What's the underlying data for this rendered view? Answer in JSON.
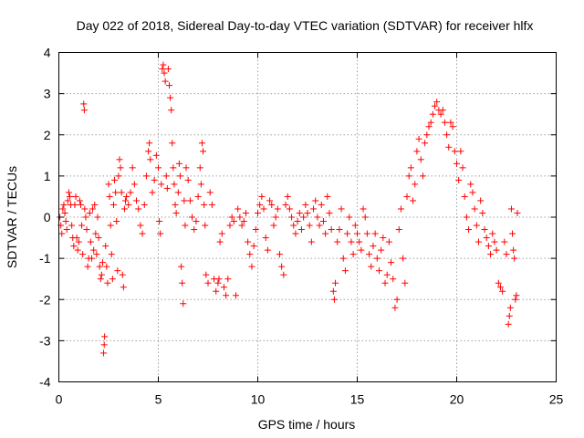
{
  "chart_data": {
    "type": "scatter",
    "title": "Day 022 of 2018, Sidereal Day-to-day VTEC variation (SDTVAR) for receiver hlfx",
    "xlabel": "GPS time / hours",
    "ylabel": "SDTVAR / TECUs",
    "xlim": [
      0,
      25
    ],
    "ylim": [
      -4,
      4
    ],
    "xticks": [
      "0",
      "5",
      "10",
      "15",
      "20",
      "25"
    ],
    "yticks": [
      "-4",
      "-3",
      "-2",
      "-1",
      "0",
      "1",
      "2",
      "3",
      "4"
    ],
    "grid": true,
    "marker": "plus",
    "color": "#ff0000",
    "series": [
      {
        "name": "SDTVAR",
        "points": [
          [
            0.05,
            0.0
          ],
          [
            0.1,
            -0.2
          ],
          [
            0.15,
            -0.4
          ],
          [
            0.2,
            0.2
          ],
          [
            0.25,
            0.3
          ],
          [
            0.3,
            0.1
          ],
          [
            0.35,
            -0.1
          ],
          [
            0.4,
            -0.3
          ],
          [
            0.45,
            0.4
          ],
          [
            0.5,
            0.6
          ],
          [
            0.55,
            0.5
          ],
          [
            0.6,
            0.3
          ],
          [
            0.65,
            -0.2
          ],
          [
            0.7,
            -0.5
          ],
          [
            0.75,
            -0.7
          ],
          [
            0.8,
            0.3
          ],
          [
            0.85,
            0.5
          ],
          [
            0.9,
            -0.5
          ],
          [
            0.95,
            -0.8
          ],
          [
            1.0,
            -0.6
          ],
          [
            1.05,
            0.4
          ],
          [
            1.1,
            0.3
          ],
          [
            1.15,
            -0.2
          ],
          [
            1.2,
            -0.9
          ],
          [
            1.25,
            2.75
          ],
          [
            1.28,
            2.6
          ],
          [
            1.3,
            0.2
          ],
          [
            1.35,
            0.0
          ],
          [
            1.4,
            -0.3
          ],
          [
            1.45,
            -1.2
          ],
          [
            1.5,
            -1.0
          ],
          [
            1.55,
            0.1
          ],
          [
            1.6,
            -0.6
          ],
          [
            1.65,
            -1.0
          ],
          [
            1.7,
            0.2
          ],
          [
            1.75,
            -0.8
          ],
          [
            1.8,
            0.3
          ],
          [
            1.85,
            -0.4
          ],
          [
            1.9,
            -0.9
          ],
          [
            1.95,
            0.0
          ],
          [
            2.0,
            -0.5
          ],
          [
            2.05,
            -1.2
          ],
          [
            2.1,
            -1.5
          ],
          [
            2.15,
            -1.4
          ],
          [
            2.2,
            -1.1
          ],
          [
            2.25,
            -3.3
          ],
          [
            2.28,
            -3.1
          ],
          [
            2.3,
            -2.9
          ],
          [
            2.35,
            -0.7
          ],
          [
            2.4,
            -1.2
          ],
          [
            2.45,
            -1.6
          ],
          [
            2.5,
            0.8
          ],
          [
            2.55,
            0.5
          ],
          [
            2.6,
            -0.2
          ],
          [
            2.65,
            -0.9
          ],
          [
            2.7,
            -1.5
          ],
          [
            2.75,
            0.3
          ],
          [
            2.8,
            0.9
          ],
          [
            2.85,
            0.6
          ],
          [
            2.9,
            -0.1
          ],
          [
            2.95,
            -1.3
          ],
          [
            3.0,
            1.0
          ],
          [
            3.05,
            1.4
          ],
          [
            3.1,
            1.2
          ],
          [
            3.15,
            0.6
          ],
          [
            3.2,
            -1.4
          ],
          [
            3.25,
            -1.7
          ],
          [
            3.3,
            0.2
          ],
          [
            3.35,
            0.4
          ],
          [
            3.4,
            0.5
          ],
          [
            3.5,
            0.3
          ],
          [
            3.6,
            0.6
          ],
          [
            3.7,
            1.2
          ],
          [
            3.8,
            0.8
          ],
          [
            3.9,
            0.4
          ],
          [
            4.0,
            0.2
          ],
          [
            4.1,
            -0.2
          ],
          [
            4.2,
            -0.4
          ],
          [
            4.3,
            0.3
          ],
          [
            4.4,
            1.0
          ],
          [
            4.5,
            1.6
          ],
          [
            4.55,
            1.8
          ],
          [
            4.6,
            1.4
          ],
          [
            4.7,
            0.6
          ],
          [
            4.8,
            0.9
          ],
          [
            4.9,
            1.5
          ],
          [
            5.0,
            1.2
          ],
          [
            5.05,
            -0.1
          ],
          [
            5.1,
            -0.4
          ],
          [
            5.15,
            0.8
          ],
          [
            5.2,
            3.6
          ],
          [
            5.25,
            3.7
          ],
          [
            5.3,
            3.5
          ],
          [
            5.35,
            3.3
          ],
          [
            5.4,
            1.0
          ],
          [
            5.45,
            0.7
          ],
          [
            5.5,
            3.6
          ],
          [
            5.55,
            3.2
          ],
          [
            5.6,
            2.9
          ],
          [
            5.65,
            2.6
          ],
          [
            5.7,
            1.8
          ],
          [
            5.75,
            1.2
          ],
          [
            5.8,
            0.8
          ],
          [
            5.85,
            0.3
          ],
          [
            5.9,
            0.1
          ],
          [
            6.0,
            0.6
          ],
          [
            6.05,
            1.3
          ],
          [
            6.1,
            1.0
          ],
          [
            6.15,
            -1.2
          ],
          [
            6.2,
            -1.6
          ],
          [
            6.25,
            -2.1
          ],
          [
            6.3,
            0.4
          ],
          [
            6.35,
            -0.2
          ],
          [
            6.4,
            1.2
          ],
          [
            6.5,
            0.9
          ],
          [
            6.6,
            0.4
          ],
          [
            6.7,
            0.0
          ],
          [
            6.8,
            -0.3
          ],
          [
            6.9,
            -0.1
          ],
          [
            7.0,
            0.5
          ],
          [
            7.1,
            1.2
          ],
          [
            7.15,
            0.8
          ],
          [
            7.2,
            1.8
          ],
          [
            7.25,
            1.6
          ],
          [
            7.3,
            0.3
          ],
          [
            7.35,
            -0.2
          ],
          [
            7.4,
            -1.4
          ],
          [
            7.5,
            -1.6
          ],
          [
            7.6,
            0.6
          ],
          [
            7.7,
            0.3
          ],
          [
            7.8,
            -1.5
          ],
          [
            7.9,
            -1.8
          ],
          [
            8.0,
            -1.6
          ],
          [
            8.05,
            -1.5
          ],
          [
            8.1,
            -0.6
          ],
          [
            8.2,
            -0.4
          ],
          [
            8.3,
            -1.7
          ],
          [
            8.4,
            -1.9
          ],
          [
            8.5,
            -1.5
          ],
          [
            8.6,
            -0.2
          ],
          [
            8.7,
            0.0
          ],
          [
            8.8,
            -0.1
          ],
          [
            8.9,
            -1.9
          ],
          [
            9.0,
            0.2
          ],
          [
            9.1,
            0.0
          ],
          [
            9.2,
            -0.2
          ],
          [
            9.3,
            -0.1
          ],
          [
            9.4,
            0.1
          ],
          [
            9.5,
            -0.6
          ],
          [
            9.6,
            -0.9
          ],
          [
            9.7,
            -1.2
          ],
          [
            9.8,
            -0.7
          ],
          [
            9.9,
            -0.3
          ],
          [
            10.0,
            0.1
          ],
          [
            10.1,
            0.3
          ],
          [
            10.2,
            0.5
          ],
          [
            10.3,
            0.2
          ],
          [
            10.4,
            -0.5
          ],
          [
            10.5,
            -0.8
          ],
          [
            10.6,
            0.4
          ],
          [
            10.7,
            0.3
          ],
          [
            10.8,
            -0.2
          ],
          [
            10.9,
            0.0
          ],
          [
            11.0,
            0.2
          ],
          [
            11.1,
            -0.9
          ],
          [
            11.2,
            -1.2
          ],
          [
            11.3,
            -1.4
          ],
          [
            11.4,
            0.3
          ],
          [
            11.5,
            0.5
          ],
          [
            11.6,
            0.2
          ],
          [
            11.7,
            0.0
          ],
          [
            11.8,
            -0.2
          ],
          [
            11.9,
            -0.4
          ],
          [
            12.0,
            -0.1
          ],
          [
            12.1,
            0.1
          ],
          [
            12.2,
            -0.3
          ],
          [
            12.3,
            0.0
          ],
          [
            12.4,
            0.3
          ],
          [
            12.5,
            0.1
          ],
          [
            12.6,
            -0.2
          ],
          [
            12.7,
            -0.6
          ],
          [
            12.8,
            0.2
          ],
          [
            12.9,
            0.4
          ],
          [
            13.0,
            0.0
          ],
          [
            13.1,
            -0.2
          ],
          [
            13.2,
            0.3
          ],
          [
            13.3,
            -0.1
          ],
          [
            13.4,
            -0.4
          ],
          [
            13.5,
            0.5
          ],
          [
            13.6,
            0.1
          ],
          [
            13.7,
            -0.3
          ],
          [
            13.8,
            -1.8
          ],
          [
            13.85,
            -2.0
          ],
          [
            13.9,
            -1.6
          ],
          [
            14.0,
            -0.6
          ],
          [
            14.1,
            -0.3
          ],
          [
            14.2,
            0.2
          ],
          [
            14.3,
            -1.0
          ],
          [
            14.4,
            -1.3
          ],
          [
            14.5,
            -0.4
          ],
          [
            14.6,
            0.0
          ],
          [
            14.7,
            -0.6
          ],
          [
            14.8,
            -0.9
          ],
          [
            14.9,
            -0.2
          ],
          [
            15.0,
            -0.4
          ],
          [
            15.1,
            -0.6
          ],
          [
            15.2,
            -0.8
          ],
          [
            15.3,
            0.2
          ],
          [
            15.4,
            0.0
          ],
          [
            15.5,
            -0.4
          ],
          [
            15.6,
            -0.9
          ],
          [
            15.7,
            -1.2
          ],
          [
            15.8,
            -0.7
          ],
          [
            15.9,
            -0.4
          ],
          [
            16.0,
            -1.0
          ],
          [
            16.1,
            -1.3
          ],
          [
            16.2,
            -0.8
          ],
          [
            16.3,
            -0.5
          ],
          [
            16.4,
            -1.6
          ],
          [
            16.5,
            -1.4
          ],
          [
            16.6,
            -0.6
          ],
          [
            16.7,
            -1.1
          ],
          [
            16.8,
            -1.5
          ],
          [
            16.9,
            -2.2
          ],
          [
            17.0,
            -2.0
          ],
          [
            17.1,
            -0.3
          ],
          [
            17.2,
            0.2
          ],
          [
            17.3,
            -1.0
          ],
          [
            17.4,
            -1.6
          ],
          [
            17.5,
            0.5
          ],
          [
            17.6,
            1.0
          ],
          [
            17.7,
            1.2
          ],
          [
            17.8,
            0.4
          ],
          [
            17.9,
            0.8
          ],
          [
            18.0,
            1.6
          ],
          [
            18.1,
            1.9
          ],
          [
            18.2,
            1.4
          ],
          [
            18.3,
            1.0
          ],
          [
            18.4,
            1.8
          ],
          [
            18.5,
            2.0
          ],
          [
            18.6,
            2.2
          ],
          [
            18.7,
            2.3
          ],
          [
            18.8,
            2.5
          ],
          [
            18.9,
            2.7
          ],
          [
            19.0,
            2.8
          ],
          [
            19.1,
            2.6
          ],
          [
            19.2,
            2.5
          ],
          [
            19.3,
            2.6
          ],
          [
            19.4,
            2.3
          ],
          [
            19.5,
            2.0
          ],
          [
            19.6,
            1.7
          ],
          [
            19.7,
            2.3
          ],
          [
            19.8,
            2.2
          ],
          [
            19.9,
            1.6
          ],
          [
            20.0,
            1.3
          ],
          [
            20.1,
            0.9
          ],
          [
            20.2,
            1.6
          ],
          [
            20.3,
            1.2
          ],
          [
            20.4,
            0.5
          ],
          [
            20.5,
            0.0
          ],
          [
            20.6,
            -0.3
          ],
          [
            20.7,
            0.8
          ],
          [
            20.8,
            0.6
          ],
          [
            20.9,
            0.2
          ],
          [
            21.0,
            -0.2
          ],
          [
            21.1,
            -0.6
          ],
          [
            21.2,
            0.4
          ],
          [
            21.3,
            0.1
          ],
          [
            21.4,
            -0.3
          ],
          [
            21.5,
            -0.5
          ],
          [
            21.6,
            -0.7
          ],
          [
            21.7,
            -0.9
          ],
          [
            21.8,
            -0.4
          ],
          [
            21.9,
            -0.6
          ],
          [
            22.0,
            -0.8
          ],
          [
            22.1,
            -1.6
          ],
          [
            22.2,
            -1.7
          ],
          [
            22.3,
            -1.8
          ],
          [
            22.4,
            -0.6
          ],
          [
            22.5,
            -0.9
          ],
          [
            22.6,
            -2.6
          ],
          [
            22.65,
            -2.4
          ],
          [
            22.7,
            -2.2
          ],
          [
            22.75,
            0.2
          ],
          [
            22.8,
            -0.4
          ],
          [
            22.85,
            -0.8
          ],
          [
            22.9,
            -1.0
          ],
          [
            22.95,
            -2.0
          ],
          [
            23.0,
            -1.9
          ],
          [
            23.05,
            0.1
          ]
        ]
      }
    ]
  }
}
